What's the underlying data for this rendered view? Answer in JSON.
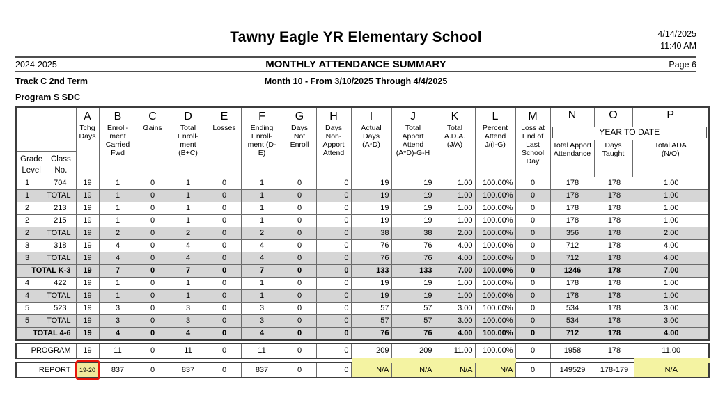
{
  "page": {
    "school_name": "Tawny Eagle YR Elementary School",
    "date": "4/14/2025",
    "time": "11:40 AM",
    "school_year": "2024-2025",
    "report_title": "MONTHLY ATTENDANCE SUMMARY",
    "page_label": "Page 6",
    "track": "Track C 2nd Term",
    "month_range": "Month 10 - From 3/10/2025 Through 4/4/2025",
    "program": "Program S SDC"
  },
  "colors": {
    "shaded_row": "#d6d6d6",
    "highlight_yellow": "#f4f3a2",
    "annotation_box_fill": "#f1e99c",
    "annotation_red": "#e8150b"
  },
  "table": {
    "corner": {
      "grade": "Grade",
      "level": "Level",
      "class": "Class",
      "no": "No."
    },
    "columns": [
      {
        "letter": "A",
        "desc": "Tchg\nDays"
      },
      {
        "letter": "B",
        "desc": "Enroll-\nment\nCarried\nFwd"
      },
      {
        "letter": "C",
        "desc": "Gains"
      },
      {
        "letter": "D",
        "desc": "Total\nEnroll-\nment\n(B+C)"
      },
      {
        "letter": "E",
        "desc": "Losses"
      },
      {
        "letter": "F",
        "desc": "Ending\nEnroll-\nment (D-\nE)"
      },
      {
        "letter": "G",
        "desc": "Days\nNot\nEnroll"
      },
      {
        "letter": "H",
        "desc": "Days\nNon-\nApport\nAttend"
      },
      {
        "letter": "I",
        "desc": "Actual\nDays\n(A*D)"
      },
      {
        "letter": "J",
        "desc": "Total\nApport\nAttend\n(A*D)-G-H"
      },
      {
        "letter": "K",
        "desc": "Total\nA.D.A.\n(J/A)"
      },
      {
        "letter": "L",
        "desc": "Percent\nAttend\nJ/(I-G)"
      },
      {
        "letter": "M",
        "desc": "Loss at\nEnd of\nLast\nSchool\nDay"
      }
    ],
    "ytd": {
      "letters": [
        "N",
        "O",
        "P"
      ],
      "title": "YEAR TO DATE",
      "subs": [
        "Total Apport\nAttendance",
        "Days\nTaught",
        "Total ADA\n(N/O)"
      ]
    },
    "rows": [
      {
        "grade": "1",
        "label": "704",
        "shade": false,
        "bold": false,
        "values": [
          "19",
          "1",
          "0",
          "1",
          "0",
          "1",
          "0",
          "0",
          "19",
          "19",
          "1.00",
          "100.00%",
          "0",
          "178",
          "178",
          "1.00"
        ]
      },
      {
        "grade": "1",
        "label": "TOTAL",
        "shade": true,
        "bold": false,
        "values": [
          "19",
          "1",
          "0",
          "1",
          "0",
          "1",
          "0",
          "0",
          "19",
          "19",
          "1.00",
          "100.00%",
          "0",
          "178",
          "178",
          "1.00"
        ]
      },
      {
        "grade": "2",
        "label": "213",
        "shade": false,
        "bold": false,
        "values": [
          "19",
          "1",
          "0",
          "1",
          "0",
          "1",
          "0",
          "0",
          "19",
          "19",
          "1.00",
          "100.00%",
          "0",
          "178",
          "178",
          "1.00"
        ]
      },
      {
        "grade": "2",
        "label": "215",
        "shade": false,
        "bold": false,
        "values": [
          "19",
          "1",
          "0",
          "1",
          "0",
          "1",
          "0",
          "0",
          "19",
          "19",
          "1.00",
          "100.00%",
          "0",
          "178",
          "178",
          "1.00"
        ]
      },
      {
        "grade": "2",
        "label": "TOTAL",
        "shade": true,
        "bold": false,
        "values": [
          "19",
          "2",
          "0",
          "2",
          "0",
          "2",
          "0",
          "0",
          "38",
          "38",
          "2.00",
          "100.00%",
          "0",
          "356",
          "178",
          "2.00"
        ]
      },
      {
        "grade": "3",
        "label": "318",
        "shade": false,
        "bold": false,
        "values": [
          "19",
          "4",
          "0",
          "4",
          "0",
          "4",
          "0",
          "0",
          "76",
          "76",
          "4.00",
          "100.00%",
          "0",
          "712",
          "178",
          "4.00"
        ]
      },
      {
        "grade": "3",
        "label": "TOTAL",
        "shade": true,
        "bold": false,
        "values": [
          "19",
          "4",
          "0",
          "4",
          "0",
          "4",
          "0",
          "0",
          "76",
          "76",
          "4.00",
          "100.00%",
          "0",
          "712",
          "178",
          "4.00"
        ]
      },
      {
        "grade": "",
        "label": "TOTAL K-3",
        "shade": true,
        "bold": true,
        "values": [
          "19",
          "7",
          "0",
          "7",
          "0",
          "7",
          "0",
          "0",
          "133",
          "133",
          "7.00",
          "100.00%",
          "0",
          "1246",
          "178",
          "7.00"
        ]
      },
      {
        "grade": "4",
        "label": "422",
        "shade": false,
        "bold": false,
        "values": [
          "19",
          "1",
          "0",
          "1",
          "0",
          "1",
          "0",
          "0",
          "19",
          "19",
          "1.00",
          "100.00%",
          "0",
          "178",
          "178",
          "1.00"
        ]
      },
      {
        "grade": "4",
        "label": "TOTAL",
        "shade": true,
        "bold": false,
        "values": [
          "19",
          "1",
          "0",
          "1",
          "0",
          "1",
          "0",
          "0",
          "19",
          "19",
          "1.00",
          "100.00%",
          "0",
          "178",
          "178",
          "1.00"
        ]
      },
      {
        "grade": "5",
        "label": "523",
        "shade": false,
        "bold": false,
        "values": [
          "19",
          "3",
          "0",
          "3",
          "0",
          "3",
          "0",
          "0",
          "57",
          "57",
          "3.00",
          "100.00%",
          "0",
          "534",
          "178",
          "3.00"
        ]
      },
      {
        "grade": "5",
        "label": "TOTAL",
        "shade": true,
        "bold": false,
        "values": [
          "19",
          "3",
          "0",
          "3",
          "0",
          "3",
          "0",
          "0",
          "57",
          "57",
          "3.00",
          "100.00%",
          "0",
          "534",
          "178",
          "3.00"
        ]
      },
      {
        "grade": "",
        "label": "TOTAL 4-6",
        "shade": true,
        "bold": true,
        "values": [
          "19",
          "4",
          "0",
          "4",
          "0",
          "4",
          "0",
          "0",
          "76",
          "76",
          "4.00",
          "100.00%",
          "0",
          "712",
          "178",
          "4.00"
        ]
      }
    ],
    "program_row": {
      "grade": "",
      "label": "PROGRAM",
      "values": [
        "19",
        "11",
        "0",
        "11",
        "0",
        "11",
        "0",
        "0",
        "209",
        "209",
        "11.00",
        "100.00%",
        "0",
        "1958",
        "178",
        "11.00"
      ]
    },
    "report_row": {
      "grade": "",
      "label": "REPORT",
      "values": [
        "19-20",
        "837",
        "0",
        "837",
        "0",
        "837",
        "0",
        "0",
        "N/A",
        "N/A",
        "N/A",
        "N/A",
        "0",
        "149529",
        "178-179",
        "N/A"
      ],
      "highlighted_columns": [
        "I",
        "J",
        "K",
        "L",
        "P"
      ],
      "annotated_column": "A"
    }
  }
}
